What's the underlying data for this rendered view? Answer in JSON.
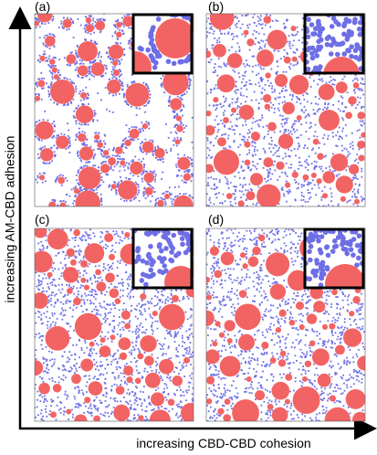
{
  "panels": [
    {
      "label": "(a)"
    },
    {
      "label": "(b)"
    },
    {
      "label": "(c)"
    },
    {
      "label": "(d)"
    }
  ],
  "axes": {
    "y_label": "increasing AM-CBD adhesion",
    "x_label": "increasing CBD-CBD cohesion"
  }
}
